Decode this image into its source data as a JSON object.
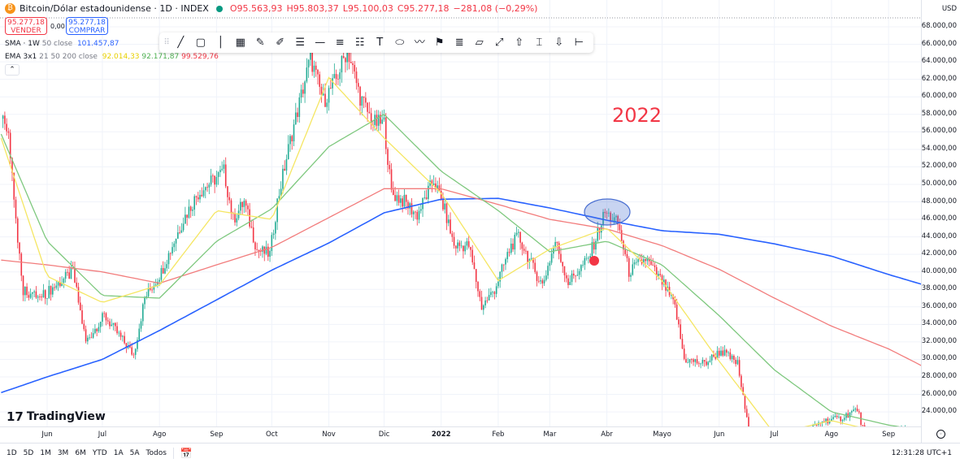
{
  "header": {
    "symbol": "Bitcoin/Dólar estadounidense · 1D · INDEX",
    "open": "O95.563,93",
    "high": "H95.803,37",
    "low": "L95.100,03",
    "close": "C95.277,18",
    "change": "−281,08 (−0,29%)"
  },
  "trade": {
    "sell_price": "95.277,18",
    "sell_label": "VENDER",
    "spread": "0,00",
    "buy_price": "95.277,18",
    "buy_label": "COMPRAR"
  },
  "indicators": {
    "sma": {
      "name": "SMA · 1W",
      "params": "50 close",
      "value": "101.457,87"
    },
    "ema": {
      "name": "EMA 3x1",
      "params": "21 50 200 close",
      "v21": "92.014,33",
      "v50": "92.171,87",
      "v200": "99.529,76"
    }
  },
  "toolbar": [
    "drag-handle",
    "trend-line",
    "rectangle",
    "vertical-line",
    "gann-box",
    "highlighter",
    "brush",
    "parallel-channel",
    "horizontal-ray",
    "horizontal-lines",
    "regression",
    "text",
    "ellipse",
    "path",
    "flag-marker",
    "fib-retracement",
    "fib-channel",
    "disjoint-channel",
    "arrow-up",
    "date-range",
    "arrow-down",
    "price-range"
  ],
  "annotation": {
    "text": "2022",
    "color": "#f23645",
    "ellipse_color": "#4a6fd1"
  },
  "colors": {
    "up": "#22ab94",
    "down": "#f23645",
    "sma": "#2962ff",
    "ema21": "#f5e663",
    "ema50": "#7ec87e",
    "ema200": "#f27c7c"
  },
  "price_axis": {
    "currency": "USD",
    "labels": [
      "68.000,00",
      "66.000,00",
      "64.000,00",
      "62.000,00",
      "60.000,00",
      "58.000,00",
      "56.000,00",
      "54.000,00",
      "52.000,00",
      "50.000,00",
      "48.000,00",
      "46.000,00",
      "44.000,00",
      "42.000,00",
      "40.000,00",
      "38.000,00",
      "36.000,00",
      "34.000,00",
      "32.000,00",
      "30.000,00",
      "28.000,00",
      "26.000,00",
      "24.000,00"
    ]
  },
  "time_axis": {
    "labels": [
      "Jun",
      "Jul",
      "Ago",
      "Sep",
      "Oct",
      "Nov",
      "Dic",
      "2022",
      "Feb",
      "Mar",
      "Abr",
      "Mayo",
      "Jun",
      "Jul",
      "Ago",
      "Sep"
    ]
  },
  "ranges": [
    "1D",
    "5D",
    "1M",
    "3M",
    "6M",
    "YTD",
    "1A",
    "5A",
    "Todos"
  ],
  "clock": "12:31:28 UTC+1",
  "logo": "TradingView",
  "chart_data": {
    "type": "candlestick",
    "ylim": [
      22000,
      69500
    ],
    "xlim": [
      "2021-05-07",
      "2022-09-30"
    ],
    "grid": true,
    "price_keypoints": [
      [
        "2021-05-07",
        57500
      ],
      [
        "2021-05-11",
        56000
      ],
      [
        "2021-05-15",
        46000
      ],
      [
        "2021-05-19",
        38000
      ],
      [
        "2021-05-28",
        37000
      ],
      [
        "2021-06-15",
        40000
      ],
      [
        "2021-06-22",
        32000
      ],
      [
        "2021-07-02",
        35000
      ],
      [
        "2021-07-18",
        30500
      ],
      [
        "2021-07-24",
        37000
      ],
      [
        "2021-08-02",
        40000
      ],
      [
        "2021-08-14",
        46000
      ],
      [
        "2021-08-22",
        49000
      ],
      [
        "2021-09-05",
        51500
      ],
      [
        "2021-09-10",
        46000
      ],
      [
        "2021-09-16",
        48000
      ],
      [
        "2021-09-23",
        42500
      ],
      [
        "2021-09-30",
        42000
      ],
      [
        "2021-10-04",
        48000
      ],
      [
        "2021-10-11",
        55000
      ],
      [
        "2021-10-18",
        61000
      ],
      [
        "2021-10-22",
        64500
      ],
      [
        "2021-10-29",
        59500
      ],
      [
        "2021-11-05",
        62000
      ],
      [
        "2021-11-11",
        65500
      ],
      [
        "2021-11-18",
        60000
      ],
      [
        "2021-11-25",
        57000
      ],
      [
        "2021-12-01",
        57000
      ],
      [
        "2021-12-05",
        49000
      ],
      [
        "2021-12-12",
        48000
      ],
      [
        "2021-12-19",
        46500
      ],
      [
        "2021-12-28",
        50500
      ],
      [
        "2022-01-03",
        47000
      ],
      [
        "2022-01-08",
        43000
      ],
      [
        "2022-01-16",
        43000
      ],
      [
        "2022-01-23",
        36000
      ],
      [
        "2022-01-30",
        38000
      ],
      [
        "2022-02-08",
        43000
      ],
      [
        "2022-02-12",
        44000
      ],
      [
        "2022-02-21",
        40000
      ],
      [
        "2022-02-25",
        38500
      ],
      [
        "2022-03-04",
        43500
      ],
      [
        "2022-03-11",
        38800
      ],
      [
        "2022-03-22",
        41500
      ],
      [
        "2022-03-31",
        46800
      ],
      [
        "2022-04-07",
        45500
      ],
      [
        "2022-04-13",
        40000
      ],
      [
        "2022-04-22",
        41500
      ],
      [
        "2022-05-02",
        38500
      ],
      [
        "2022-05-08",
        36000
      ],
      [
        "2022-05-13",
        30000
      ],
      [
        "2022-05-24",
        29500
      ],
      [
        "2022-06-02",
        31000
      ],
      [
        "2022-06-11",
        29500
      ],
      [
        "2022-06-18",
        20500
      ],
      [
        "2022-07-15",
        21000
      ],
      [
        "2022-07-27",
        23000
      ],
      [
        "2022-08-05",
        23200
      ],
      [
        "2022-08-15",
        24300
      ],
      [
        "2022-08-19",
        21500
      ],
      [
        "2022-08-24",
        21400
      ],
      [
        "2022-09-10",
        21800
      ],
      [
        "2022-09-30",
        19500
      ]
    ],
    "series": [
      {
        "name": "SMA · 1W 50 close",
        "color": "#2962ff",
        "points": [
          [
            "2021-05-07",
            26200
          ],
          [
            "2021-06-01",
            28000
          ],
          [
            "2021-07-01",
            30000
          ],
          [
            "2021-08-01",
            33300
          ],
          [
            "2021-09-01",
            36800
          ],
          [
            "2021-10-01",
            40200
          ],
          [
            "2021-11-01",
            43300
          ],
          [
            "2021-12-01",
            46750
          ],
          [
            "2022-01-01",
            48300
          ],
          [
            "2022-02-01",
            48400
          ],
          [
            "2022-03-01",
            47300
          ],
          [
            "2022-04-01",
            45900
          ],
          [
            "2022-05-01",
            44700
          ],
          [
            "2022-06-01",
            44300
          ],
          [
            "2022-07-01",
            43200
          ],
          [
            "2022-08-01",
            41800
          ],
          [
            "2022-09-01",
            39700
          ],
          [
            "2022-09-30",
            37900
          ]
        ]
      },
      {
        "name": "EMA 200",
        "color": "#f27c7c",
        "points": [
          [
            "2021-05-07",
            41350
          ],
          [
            "2021-06-01",
            40800
          ],
          [
            "2021-07-01",
            40000
          ],
          [
            "2021-08-01",
            38700
          ],
          [
            "2021-09-01",
            40800
          ],
          [
            "2021-10-01",
            42800
          ],
          [
            "2021-11-01",
            46200
          ],
          [
            "2021-12-01",
            49500
          ],
          [
            "2022-01-01",
            49500
          ],
          [
            "2022-02-01",
            47700
          ],
          [
            "2022-03-01",
            46000
          ],
          [
            "2022-04-01",
            44900
          ],
          [
            "2022-05-01",
            43000
          ],
          [
            "2022-06-01",
            40300
          ],
          [
            "2022-07-01",
            37000
          ],
          [
            "2022-08-01",
            33800
          ],
          [
            "2022-09-01",
            31200
          ],
          [
            "2022-09-30",
            28100
          ]
        ]
      },
      {
        "name": "EMA 50",
        "color": "#7ec87e",
        "points": [
          [
            "2021-05-07",
            55750
          ],
          [
            "2021-06-01",
            43500
          ],
          [
            "2021-07-01",
            37300
          ],
          [
            "2021-08-01",
            37000
          ],
          [
            "2021-09-01",
            43500
          ],
          [
            "2021-10-01",
            47200
          ],
          [
            "2021-11-01",
            54300
          ],
          [
            "2021-12-01",
            58000
          ],
          [
            "2022-01-01",
            51500
          ],
          [
            "2022-02-01",
            47000
          ],
          [
            "2022-03-01",
            42300
          ],
          [
            "2022-04-01",
            43500
          ],
          [
            "2022-05-01",
            40800
          ],
          [
            "2022-06-01",
            35000
          ],
          [
            "2022-07-01",
            28800
          ],
          [
            "2022-08-01",
            24000
          ],
          [
            "2022-09-01",
            22500
          ],
          [
            "2022-09-30",
            21500
          ]
        ]
      },
      {
        "name": "EMA 21",
        "color": "#f5e663",
        "points": [
          [
            "2021-05-07",
            55300
          ],
          [
            "2021-06-01",
            39500
          ],
          [
            "2021-07-01",
            36500
          ],
          [
            "2021-08-01",
            38500
          ],
          [
            "2021-09-01",
            47000
          ],
          [
            "2021-10-01",
            46000
          ],
          [
            "2021-11-01",
            62200
          ],
          [
            "2021-12-01",
            55300
          ],
          [
            "2022-01-01",
            49000
          ],
          [
            "2022-02-01",
            39000
          ],
          [
            "2022-03-01",
            42600
          ],
          [
            "2022-04-01",
            45000
          ],
          [
            "2022-05-01",
            39000
          ],
          [
            "2022-06-01",
            29800
          ],
          [
            "2022-07-01",
            21500
          ],
          [
            "2022-08-01",
            23000
          ],
          [
            "2022-09-01",
            21500
          ],
          [
            "2022-09-30",
            20000
          ]
        ]
      }
    ]
  }
}
